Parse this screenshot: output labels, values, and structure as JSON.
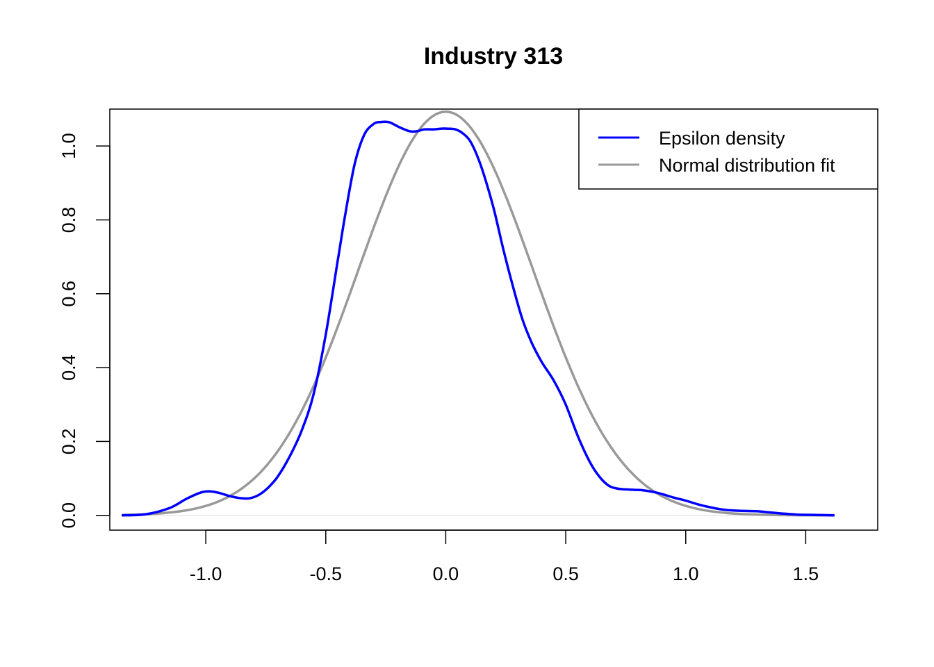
{
  "chart_data": {
    "type": "line",
    "title": "Industry 313",
    "xlabel": "",
    "ylabel": "",
    "xlim": [
      -1.4,
      1.8
    ],
    "ylim": [
      -0.04,
      1.1
    ],
    "x_ticks": [
      -1.0,
      -0.5,
      0.0,
      0.5,
      1.0,
      1.5
    ],
    "x_tick_labels": [
      "-1.0",
      "-0.5",
      "0.0",
      "0.5",
      "1.0",
      "1.5"
    ],
    "y_ticks": [
      0.0,
      0.2,
      0.4,
      0.6,
      0.8,
      1.0
    ],
    "y_tick_labels": [
      "0.0",
      "0.2",
      "0.4",
      "0.6",
      "0.8",
      "1.0"
    ],
    "baseline": 0,
    "grid": false,
    "legend": {
      "position": "top-right"
    },
    "series": [
      {
        "name": "Epsilon density",
        "color": "#0000ff",
        "x": [
          -1.35,
          -1.25,
          -1.15,
          -1.08,
          -1.02,
          -0.98,
          -0.94,
          -0.9,
          -0.86,
          -0.82,
          -0.78,
          -0.74,
          -0.7,
          -0.65,
          -0.6,
          -0.55,
          -0.5,
          -0.45,
          -0.42,
          -0.38,
          -0.34,
          -0.3,
          -0.27,
          -0.24,
          -0.22,
          -0.19,
          -0.15,
          -0.12,
          -0.09,
          -0.05,
          -0.02,
          0.01,
          0.04,
          0.07,
          0.1,
          0.13,
          0.16,
          0.2,
          0.24,
          0.28,
          0.32,
          0.36,
          0.4,
          0.45,
          0.5,
          0.55,
          0.6,
          0.64,
          0.68,
          0.72,
          0.76,
          0.79,
          0.82,
          0.86,
          0.9,
          0.95,
          1.0,
          1.05,
          1.1,
          1.15,
          1.2,
          1.25,
          1.3,
          1.35,
          1.4,
          1.47,
          1.55,
          1.62
        ],
        "y": [
          0.0,
          0.003,
          0.02,
          0.045,
          0.062,
          0.065,
          0.06,
          0.052,
          0.047,
          0.046,
          0.055,
          0.075,
          0.105,
          0.16,
          0.23,
          0.33,
          0.49,
          0.69,
          0.81,
          0.95,
          1.03,
          1.06,
          1.065,
          1.065,
          1.06,
          1.05,
          1.04,
          1.04,
          1.045,
          1.045,
          1.047,
          1.047,
          1.045,
          1.035,
          1.015,
          0.975,
          0.92,
          0.83,
          0.72,
          0.62,
          0.53,
          0.465,
          0.415,
          0.365,
          0.3,
          0.215,
          0.145,
          0.105,
          0.08,
          0.072,
          0.07,
          0.069,
          0.068,
          0.064,
          0.058,
          0.048,
          0.04,
          0.03,
          0.022,
          0.016,
          0.013,
          0.012,
          0.011,
          0.008,
          0.005,
          0.002,
          0.001,
          0.0
        ]
      },
      {
        "name": "Normal distribution fit",
        "color": "#999999",
        "mean": 0.0,
        "sd": 0.365,
        "x_range": [
          -1.35,
          1.62
        ]
      }
    ]
  }
}
